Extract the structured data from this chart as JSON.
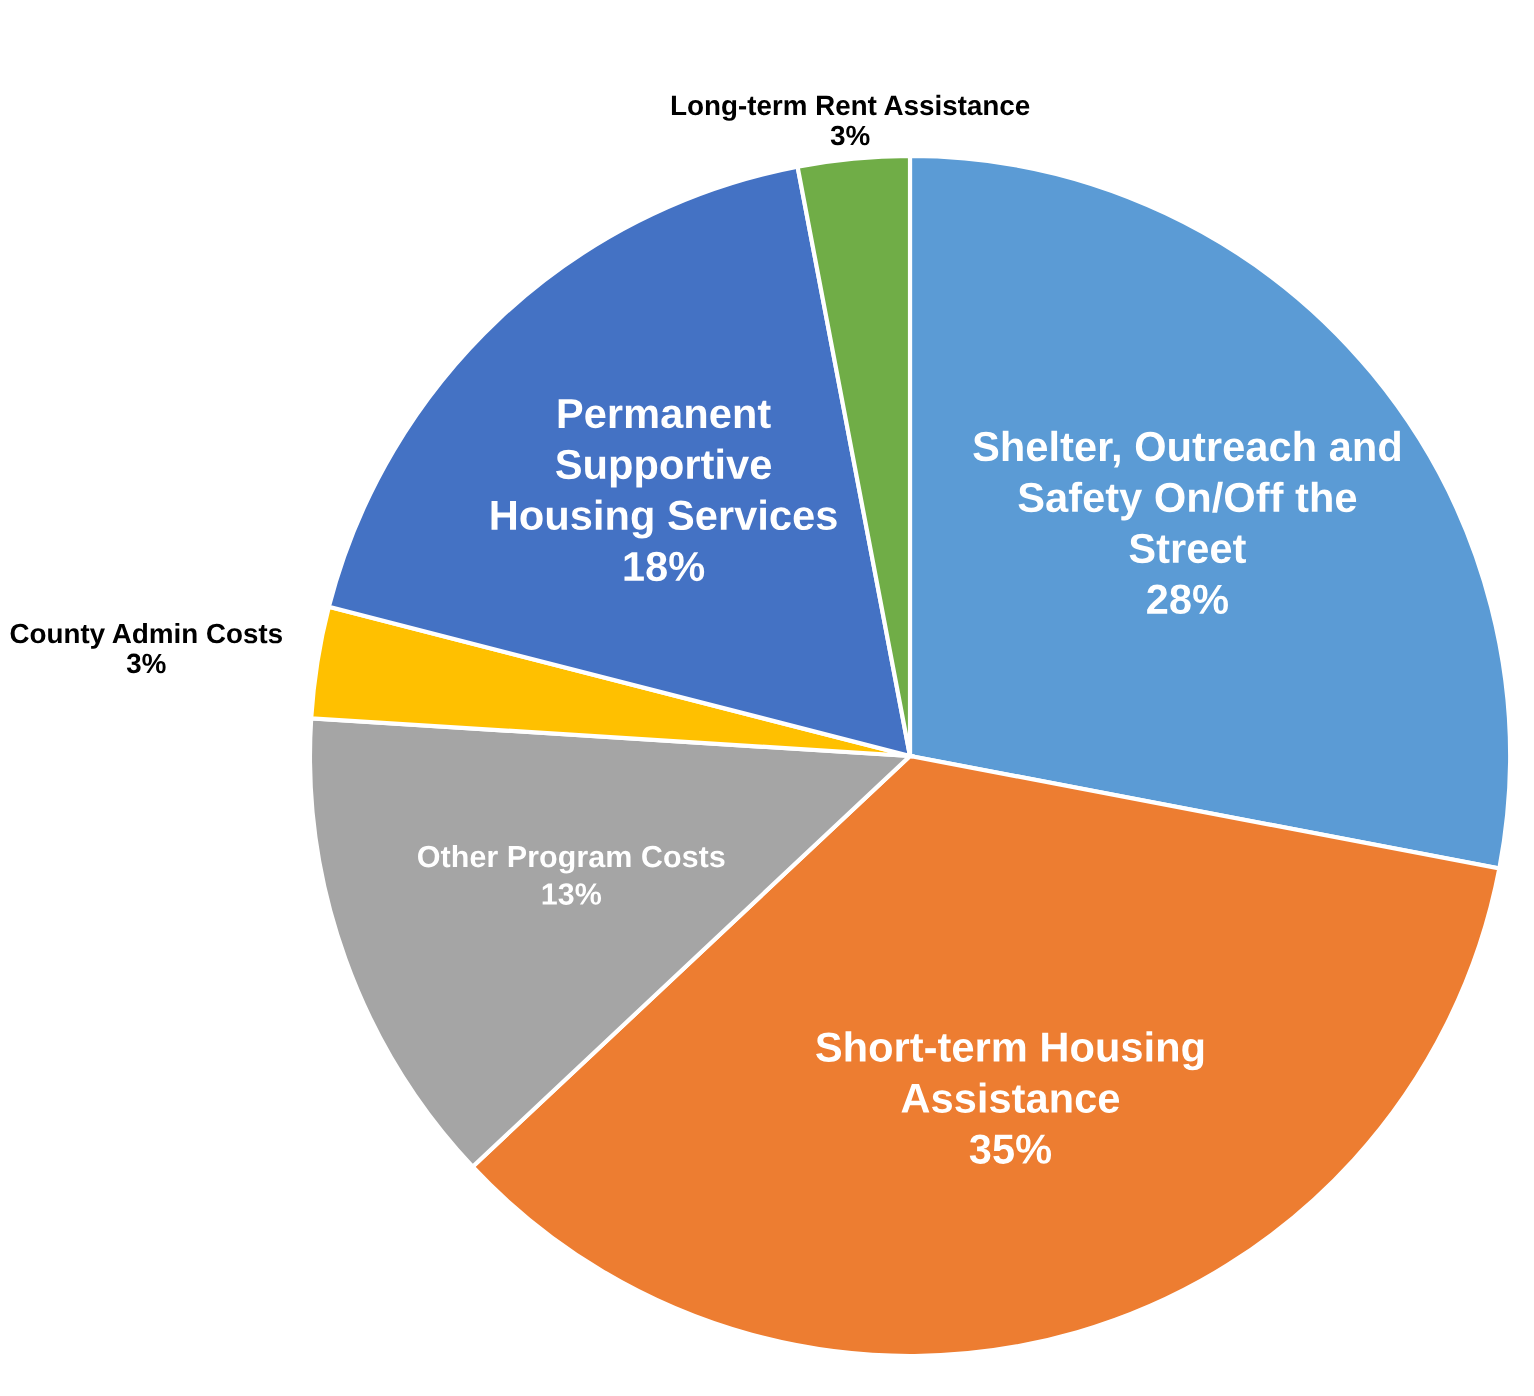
{
  "chart_data": {
    "type": "pie",
    "categories": [
      "Shelter, Outreach and\nSafety On/Off the\nStreet",
      "Short-term Housing\nAssistance",
      "Other Program Costs",
      "County Admin Costs",
      "Permanent\nSupportive\nHousing Services",
      "Long-term Rent Assistance"
    ],
    "values": [
      28,
      35,
      13,
      3,
      18,
      3
    ],
    "colors": [
      "#5b9bd5",
      "#ed7d31",
      "#a5a5a5",
      "#ffc000",
      "#4472c4",
      "#70ad47"
    ],
    "value_labels": [
      "28%",
      "35%",
      "13%",
      "3%",
      "18%",
      "3%"
    ],
    "legend": false
  }
}
